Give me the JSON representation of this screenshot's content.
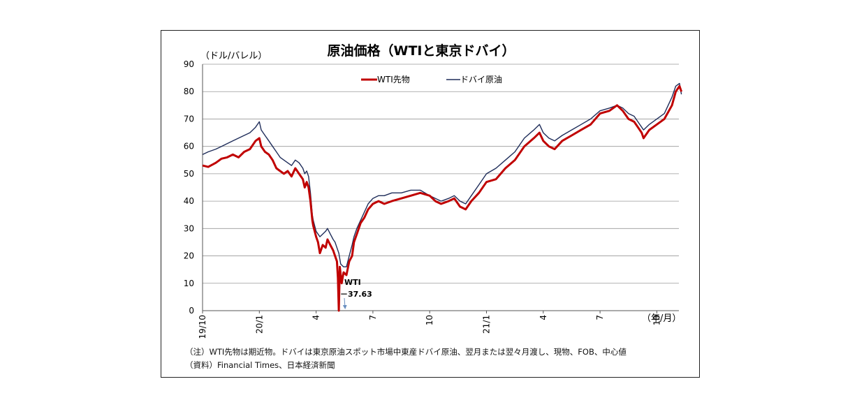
{
  "chart_data": {
    "type": "line",
    "title": "原油価格（WTIと東京ドバイ）",
    "y_unit": "（ドル/バレル）",
    "x_unit": "（年/月）",
    "ylim": [
      0,
      90
    ],
    "y_ticks": [
      0,
      10,
      20,
      30,
      40,
      50,
      60,
      70,
      80,
      90
    ],
    "x_ticks": [
      {
        "label": "19/10",
        "t": 0
      },
      {
        "label": "20/1",
        "t": 3
      },
      {
        "label": "4",
        "t": 6
      },
      {
        "label": "7",
        "t": 9
      },
      {
        "label": "10",
        "t": 12
      },
      {
        "label": "21/1",
        "t": 15
      },
      {
        "label": "4",
        "t": 18
      },
      {
        "label": "7",
        "t": 21
      },
      {
        "label": "10",
        "t": 24
      }
    ],
    "x_range": [
      0,
      25.3
    ],
    "grid": "horizontal",
    "legend_position": "top-center",
    "series": [
      {
        "name": "WTI先物",
        "color": "#c00000",
        "points": [
          [
            0,
            53
          ],
          [
            0.3,
            52.5
          ],
          [
            0.7,
            54
          ],
          [
            1.0,
            55.5
          ],
          [
            1.3,
            56
          ],
          [
            1.6,
            57
          ],
          [
            1.9,
            56
          ],
          [
            2.2,
            58
          ],
          [
            2.5,
            59
          ],
          [
            2.8,
            62
          ],
          [
            3.0,
            63
          ],
          [
            3.1,
            60
          ],
          [
            3.3,
            58
          ],
          [
            3.5,
            57
          ],
          [
            3.7,
            55
          ],
          [
            3.9,
            52
          ],
          [
            4.1,
            51
          ],
          [
            4.3,
            50
          ],
          [
            4.5,
            51
          ],
          [
            4.7,
            49
          ],
          [
            4.9,
            52
          ],
          [
            5.1,
            50
          ],
          [
            5.3,
            48
          ],
          [
            5.4,
            45
          ],
          [
            5.5,
            47
          ],
          [
            5.6,
            45
          ],
          [
            5.7,
            40
          ],
          [
            5.8,
            33
          ],
          [
            5.85,
            31
          ],
          [
            6.0,
            27
          ],
          [
            6.1,
            25
          ],
          [
            6.2,
            21
          ],
          [
            6.35,
            24
          ],
          [
            6.5,
            23
          ],
          [
            6.6,
            26
          ],
          [
            6.75,
            24
          ],
          [
            6.9,
            22
          ],
          [
            7.0,
            20
          ],
          [
            7.1,
            18
          ],
          [
            7.15,
            12
          ],
          [
            7.2,
            0
          ],
          [
            7.25,
            16
          ],
          [
            7.35,
            10
          ],
          [
            7.45,
            14
          ],
          [
            7.6,
            13
          ],
          [
            7.75,
            18
          ],
          [
            7.9,
            20
          ],
          [
            8.0,
            25
          ],
          [
            8.15,
            28
          ],
          [
            8.35,
            32
          ],
          [
            8.55,
            34
          ],
          [
            8.75,
            37
          ],
          [
            9.0,
            39
          ],
          [
            9.3,
            40
          ],
          [
            9.6,
            39
          ],
          [
            10.0,
            40
          ],
          [
            10.5,
            41
          ],
          [
            11.0,
            42
          ],
          [
            11.5,
            43
          ],
          [
            12.0,
            42
          ],
          [
            12.3,
            40
          ],
          [
            12.6,
            39
          ],
          [
            13.0,
            40
          ],
          [
            13.3,
            41
          ],
          [
            13.6,
            38
          ],
          [
            13.9,
            37
          ],
          [
            14.2,
            40
          ],
          [
            14.6,
            43
          ],
          [
            15.0,
            47
          ],
          [
            15.5,
            48
          ],
          [
            16.0,
            52
          ],
          [
            16.5,
            55
          ],
          [
            17.0,
            60
          ],
          [
            17.5,
            63
          ],
          [
            17.8,
            65
          ],
          [
            18.0,
            62
          ],
          [
            18.3,
            60
          ],
          [
            18.6,
            59
          ],
          [
            19.0,
            62
          ],
          [
            19.5,
            64
          ],
          [
            20.0,
            66
          ],
          [
            20.5,
            68
          ],
          [
            21.0,
            72
          ],
          [
            21.5,
            73
          ],
          [
            21.9,
            75
          ],
          [
            22.2,
            73
          ],
          [
            22.5,
            70
          ],
          [
            22.8,
            69
          ],
          [
            23.0,
            67
          ],
          [
            23.2,
            65
          ],
          [
            23.3,
            63
          ],
          [
            23.6,
            66
          ],
          [
            24.0,
            68
          ],
          [
            24.4,
            70
          ],
          [
            24.8,
            75
          ],
          [
            25.0,
            80
          ],
          [
            25.2,
            82
          ],
          [
            25.3,
            80
          ]
        ]
      },
      {
        "name": "ドバイ原油",
        "color": "#1f2d5a",
        "points": [
          [
            0,
            57
          ],
          [
            0.3,
            58
          ],
          [
            0.7,
            59
          ],
          [
            1.0,
            60
          ],
          [
            1.3,
            61
          ],
          [
            1.6,
            62
          ],
          [
            1.9,
            63
          ],
          [
            2.2,
            64
          ],
          [
            2.5,
            65
          ],
          [
            2.8,
            67
          ],
          [
            3.0,
            69
          ],
          [
            3.1,
            66
          ],
          [
            3.3,
            64
          ],
          [
            3.5,
            62
          ],
          [
            3.7,
            60
          ],
          [
            3.9,
            58
          ],
          [
            4.1,
            56
          ],
          [
            4.3,
            55
          ],
          [
            4.5,
            54
          ],
          [
            4.7,
            53
          ],
          [
            4.9,
            55
          ],
          [
            5.1,
            54
          ],
          [
            5.3,
            52
          ],
          [
            5.4,
            50
          ],
          [
            5.5,
            51
          ],
          [
            5.6,
            49
          ],
          [
            5.7,
            43
          ],
          [
            5.8,
            35
          ],
          [
            5.85,
            33
          ],
          [
            6.0,
            29
          ],
          [
            6.1,
            28
          ],
          [
            6.2,
            27
          ],
          [
            6.35,
            28
          ],
          [
            6.5,
            29
          ],
          [
            6.6,
            30
          ],
          [
            6.75,
            28
          ],
          [
            6.9,
            26
          ],
          [
            7.0,
            25
          ],
          [
            7.1,
            23
          ],
          [
            7.2,
            21
          ],
          [
            7.3,
            17
          ],
          [
            7.45,
            16
          ],
          [
            7.6,
            16
          ],
          [
            7.75,
            20
          ],
          [
            7.9,
            24
          ],
          [
            8.0,
            27
          ],
          [
            8.15,
            30
          ],
          [
            8.35,
            33
          ],
          [
            8.55,
            36
          ],
          [
            8.75,
            39
          ],
          [
            9.0,
            41
          ],
          [
            9.3,
            42
          ],
          [
            9.6,
            42
          ],
          [
            10.0,
            43
          ],
          [
            10.5,
            43
          ],
          [
            11.0,
            44
          ],
          [
            11.5,
            44
          ],
          [
            12.0,
            42
          ],
          [
            12.3,
            41
          ],
          [
            12.6,
            40
          ],
          [
            13.0,
            41
          ],
          [
            13.3,
            42
          ],
          [
            13.6,
            40
          ],
          [
            13.9,
            39
          ],
          [
            14.2,
            42
          ],
          [
            14.6,
            46
          ],
          [
            15.0,
            50
          ],
          [
            15.5,
            52
          ],
          [
            16.0,
            55
          ],
          [
            16.5,
            58
          ],
          [
            17.0,
            63
          ],
          [
            17.5,
            66
          ],
          [
            17.8,
            68
          ],
          [
            18.0,
            65
          ],
          [
            18.3,
            63
          ],
          [
            18.6,
            62
          ],
          [
            19.0,
            64
          ],
          [
            19.5,
            66
          ],
          [
            20.0,
            68
          ],
          [
            20.5,
            70
          ],
          [
            21.0,
            73
          ],
          [
            21.5,
            74
          ],
          [
            21.9,
            75
          ],
          [
            22.2,
            74
          ],
          [
            22.5,
            72
          ],
          [
            22.8,
            71
          ],
          [
            23.0,
            69
          ],
          [
            23.2,
            67
          ],
          [
            23.3,
            66
          ],
          [
            23.6,
            68
          ],
          [
            24.0,
            70
          ],
          [
            24.4,
            72
          ],
          [
            24.8,
            78
          ],
          [
            25.0,
            82
          ],
          [
            25.2,
            83
          ],
          [
            25.3,
            79
          ]
        ]
      }
    ],
    "annotation": {
      "line1": "WTI",
      "line2": "－37.63",
      "x": 7.2,
      "y": 0
    }
  },
  "notes": {
    "note1": "（注）WTI先物は期近物。ドバイは東京原油スポット市場中東産ドバイ原油、翌月または翌々月渡し、現物、FOB、中心値",
    "note2": "（資料）Financial Times、日本経済新聞"
  }
}
